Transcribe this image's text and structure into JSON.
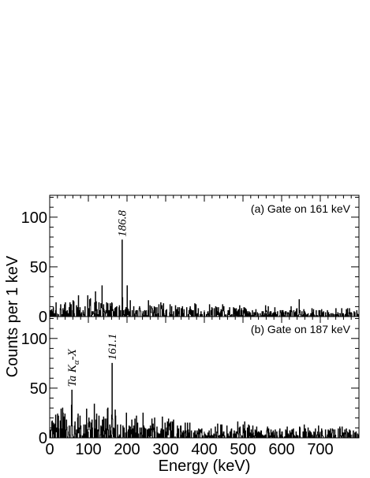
{
  "chart_data": {
    "type": "line",
    "xlabel": "Energy (keV)",
    "ylabel": "Counts per 1 keV",
    "xlim": [
      0,
      800
    ],
    "x_ticks": [
      "0",
      "100",
      "200",
      "300",
      "400",
      "500",
      "600",
      "700"
    ],
    "panels": [
      {
        "label": "(a) Gate on 161 keV",
        "ylim": [
          0,
          122
        ],
        "y_ticks": [
          "0",
          "50",
          "100"
        ],
        "peaks": [
          {
            "x": 186.8,
            "y": 77,
            "label": "186.8"
          },
          {
            "x": 200,
            "y": 31
          },
          {
            "x": 135,
            "y": 31
          },
          {
            "x": 118,
            "y": 25
          },
          {
            "x": 645,
            "y": 17
          }
        ],
        "background": {
          "max_counts": 20,
          "decay": 0.5
        }
      },
      {
        "label": "(b) Gate on 187 keV",
        "ylim": [
          0,
          122
        ],
        "y_ticks": [
          "0",
          "50",
          "100"
        ],
        "peaks": [
          {
            "x": 161.1,
            "y": 75,
            "label": "161.1"
          },
          {
            "x": 57,
            "y": 48,
            "label_main": "Ta K",
            "label_sub": "α",
            "label_suffix": "-X"
          },
          {
            "x": 115,
            "y": 34
          },
          {
            "x": 150,
            "y": 30
          },
          {
            "x": 198,
            "y": 25
          }
        ],
        "background": {
          "max_counts": 32,
          "decay": 0.62
        }
      }
    ]
  }
}
